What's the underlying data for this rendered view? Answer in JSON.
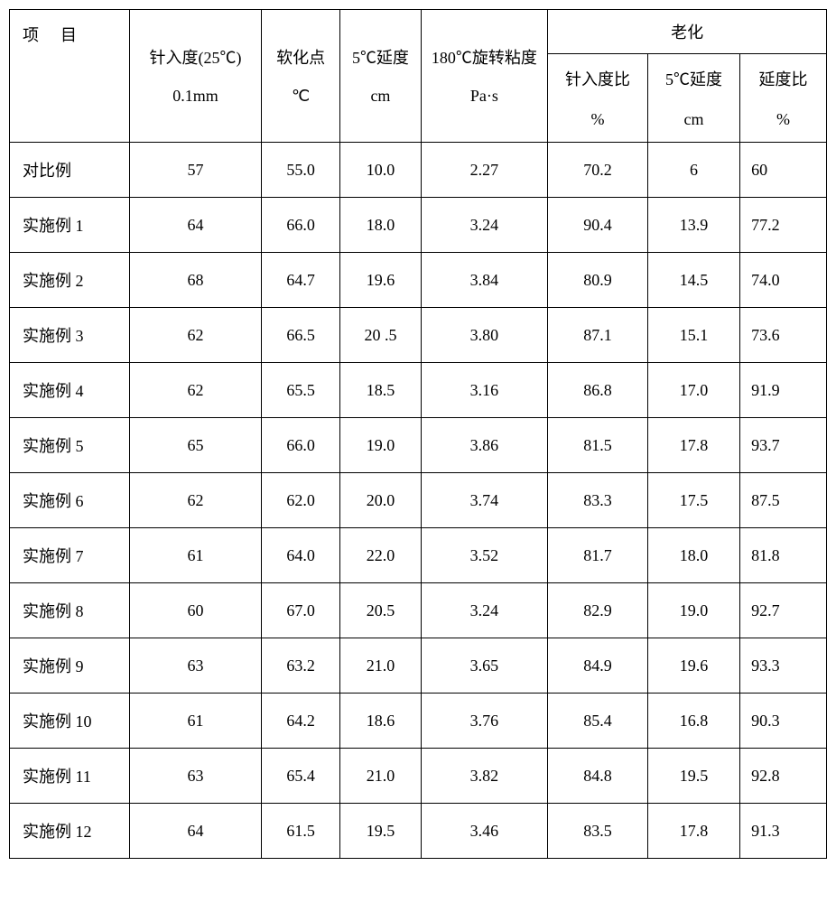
{
  "headers": {
    "item": "项目",
    "penetration": {
      "l1": "针入度(25℃)",
      "l2": "0.1mm"
    },
    "softening": {
      "l1": "软化点",
      "l2": "℃"
    },
    "ductility": {
      "l1": "5℃延度",
      "l2": "cm"
    },
    "viscosity": {
      "l1": "180℃旋转粘度",
      "l2": "Pa·s"
    },
    "aging": "老化",
    "aging_pen": {
      "l1": "针入度比",
      "l2": "%"
    },
    "aging_duct": {
      "l1": "5℃延度",
      "l2": "cm"
    },
    "aging_ratio": {
      "l1": "延度比",
      "l2": "%"
    }
  },
  "rows": [
    {
      "name": "对比例",
      "pen": "57",
      "soft": "55.0",
      "duct": "10.0",
      "visc": "2.27",
      "a1": "70.2",
      "a2": "6",
      "a3": "60"
    },
    {
      "name": "实施例 1",
      "pen": "64",
      "soft": "66.0",
      "duct": "18.0",
      "visc": "3.24",
      "a1": "90.4",
      "a2": "13.9",
      "a3": "77.2"
    },
    {
      "name": "实施例 2",
      "pen": "68",
      "soft": "64.7",
      "duct": "19.6",
      "visc": "3.84",
      "a1": "80.9",
      "a2": "14.5",
      "a3": "74.0"
    },
    {
      "name": "实施例 3",
      "pen": "62",
      "soft": "66.5",
      "duct": "20 .5",
      "visc": "3.80",
      "a1": "87.1",
      "a2": "15.1",
      "a3": "73.6"
    },
    {
      "name": "实施例 4",
      "pen": "62",
      "soft": "65.5",
      "duct": "18.5",
      "visc": "3.16",
      "a1": "86.8",
      "a2": "17.0",
      "a3": "91.9"
    },
    {
      "name": "实施例 5",
      "pen": "65",
      "soft": "66.0",
      "duct": "19.0",
      "visc": "3.86",
      "a1": "81.5",
      "a2": "17.8",
      "a3": "93.7"
    },
    {
      "name": "实施例 6",
      "pen": "62",
      "soft": "62.0",
      "duct": "20.0",
      "visc": "3.74",
      "a1": "83.3",
      "a2": "17.5",
      "a3": "87.5"
    },
    {
      "name": "实施例 7",
      "pen": "61",
      "soft": "64.0",
      "duct": "22.0",
      "visc": "3.52",
      "a1": "81.7",
      "a2": "18.0",
      "a3": "81.8"
    },
    {
      "name": "实施例 8",
      "pen": "60",
      "soft": "67.0",
      "duct": "20.5",
      "visc": "3.24",
      "a1": "82.9",
      "a2": "19.0",
      "a3": "92.7"
    },
    {
      "name": "实施例 9",
      "pen": "63",
      "soft": "63.2",
      "duct": "21.0",
      "visc": "3.65",
      "a1": "84.9",
      "a2": "19.6",
      "a3": "93.3"
    },
    {
      "name": "实施例 10",
      "pen": "61",
      "soft": "64.2",
      "duct": "18.6",
      "visc": "3.76",
      "a1": "85.4",
      "a2": "16.8",
      "a3": "90.3"
    },
    {
      "name": "实施例 11",
      "pen": "63",
      "soft": "65.4",
      "duct": "21.0",
      "visc": "3.82",
      "a1": "84.8",
      "a2": "19.5",
      "a3": "92.8"
    },
    {
      "name": "实施例 12",
      "pen": "64",
      "soft": "61.5",
      "duct": "19.5",
      "visc": "3.46",
      "a1": "83.5",
      "a2": "17.8",
      "a3": "91.3"
    }
  ]
}
